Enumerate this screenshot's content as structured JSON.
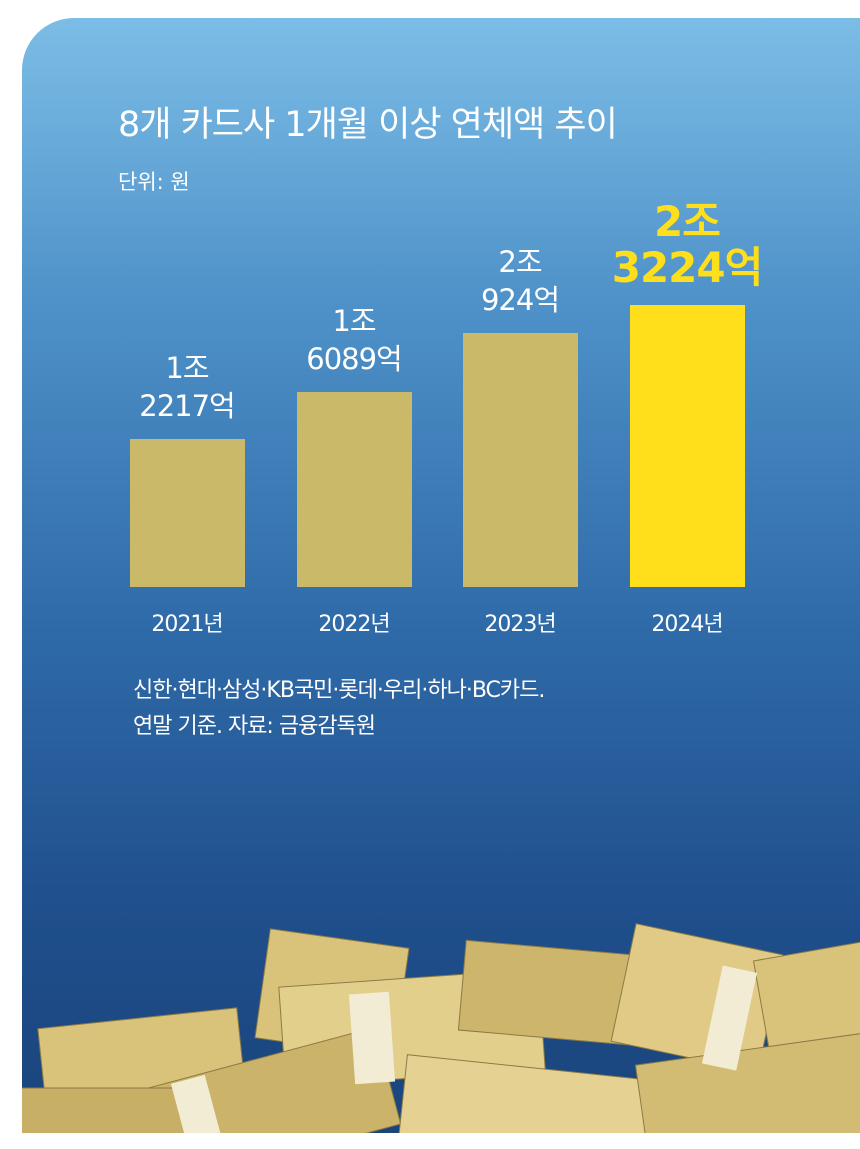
{
  "chart_data": {
    "type": "bar",
    "title": "8개 카드사 1개월 이상 연체액 추이",
    "unit": "단위: 원",
    "categories": [
      "2021년",
      "2022년",
      "2023년",
      "2024년"
    ],
    "values": [
      1221700000000,
      1608900000000,
      2092400000000,
      2322400000000
    ],
    "value_labels": [
      "1조\n2217억",
      "1조\n6089억",
      "2조\n924억",
      "2조\n3224억"
    ],
    "colors": [
      "#c9b968",
      "#c9b968",
      "#c9b968",
      "#ffdf1c"
    ],
    "value_label_colors": [
      "#ffffff",
      "#ffffff",
      "#ffffff",
      "#ffdf1c"
    ],
    "notes": [
      "신한·현대·삼성·KB국민·롯데·우리·하나·BC카드.",
      "연말 기준. 자료: 금융감독원"
    ]
  }
}
